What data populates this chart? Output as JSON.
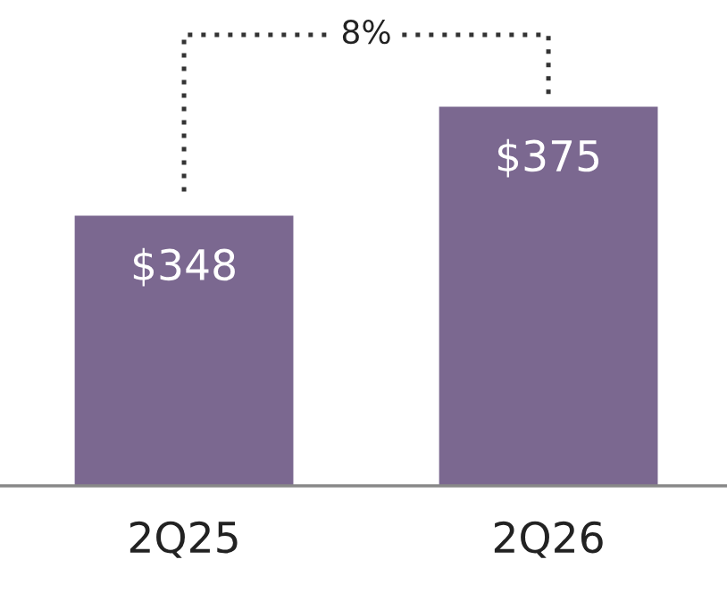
{
  "chart_data": {
    "type": "bar",
    "categories": [
      "2Q25",
      "2Q26"
    ],
    "values": [
      348,
      375
    ],
    "value_labels": [
      "$348",
      "$375"
    ],
    "color": "#7b6890",
    "ylim": [
      281,
      400
    ],
    "annotations": [
      "8%"
    ],
    "tick_labels": "x",
    "grid": false,
    "legend": false
  }
}
